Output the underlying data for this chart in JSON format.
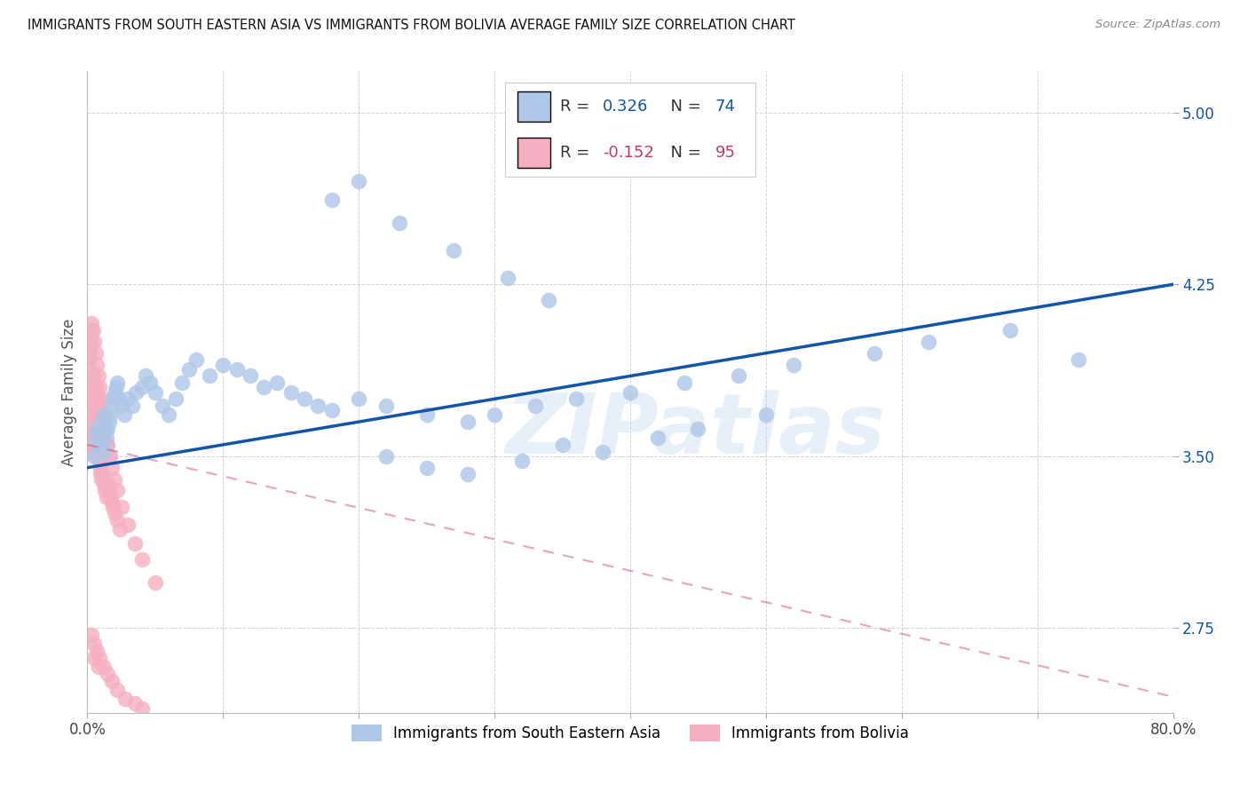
{
  "title": "IMMIGRANTS FROM SOUTH EASTERN ASIA VS IMMIGRANTS FROM BOLIVIA AVERAGE FAMILY SIZE CORRELATION CHART",
  "source": "Source: ZipAtlas.com",
  "ylabel": "Average Family Size",
  "yticks": [
    2.75,
    3.5,
    4.25,
    5.0
  ],
  "xlim": [
    0.0,
    0.8
  ],
  "ylim": [
    2.38,
    5.18
  ],
  "legend1_r": "0.326",
  "legend1_n": "74",
  "legend2_r": "-0.152",
  "legend2_n": "95",
  "color_blue": "#aec6e8",
  "color_pink": "#f5afc0",
  "trendline_blue": "#1155aa",
  "trendline_pink": "#cc3366",
  "watermark_text": "ZIPatlas",
  "legend_bottom_1": "Immigrants from South Eastern Asia",
  "legend_bottom_2": "Immigrants from Bolivia",
  "blue_x": [
    0.005,
    0.006,
    0.007,
    0.008,
    0.009,
    0.01,
    0.011,
    0.012,
    0.013,
    0.014,
    0.015,
    0.016,
    0.017,
    0.018,
    0.019,
    0.02,
    0.021,
    0.022,
    0.023,
    0.025,
    0.027,
    0.03,
    0.033,
    0.036,
    0.04,
    0.043,
    0.046,
    0.05,
    0.055,
    0.06,
    0.065,
    0.07,
    0.075,
    0.08,
    0.09,
    0.1,
    0.11,
    0.12,
    0.13,
    0.14,
    0.15,
    0.16,
    0.17,
    0.18,
    0.2,
    0.22,
    0.25,
    0.28,
    0.3,
    0.33,
    0.36,
    0.4,
    0.44,
    0.48,
    0.52,
    0.58,
    0.62,
    0.68,
    0.73,
    0.22,
    0.25,
    0.28,
    0.32,
    0.35,
    0.38,
    0.42,
    0.45,
    0.5,
    0.18,
    0.2,
    0.23,
    0.27,
    0.31,
    0.34
  ],
  "blue_y": [
    3.5,
    3.58,
    3.62,
    3.55,
    3.6,
    3.65,
    3.6,
    3.68,
    3.52,
    3.58,
    3.62,
    3.65,
    3.68,
    3.72,
    3.75,
    3.78,
    3.8,
    3.82,
    3.75,
    3.72,
    3.68,
    3.75,
    3.72,
    3.78,
    3.8,
    3.85,
    3.82,
    3.78,
    3.72,
    3.68,
    3.75,
    3.82,
    3.88,
    3.92,
    3.85,
    3.9,
    3.88,
    3.85,
    3.8,
    3.82,
    3.78,
    3.75,
    3.72,
    3.7,
    3.75,
    3.72,
    3.68,
    3.65,
    3.68,
    3.72,
    3.75,
    3.78,
    3.82,
    3.85,
    3.9,
    3.95,
    4.0,
    4.05,
    3.92,
    3.5,
    3.45,
    3.42,
    3.48,
    3.55,
    3.52,
    3.58,
    3.62,
    3.68,
    4.62,
    4.7,
    4.52,
    4.4,
    4.28,
    4.18
  ],
  "pink_x": [
    0.001,
    0.0013,
    0.0016,
    0.002,
    0.0023,
    0.0026,
    0.003,
    0.0033,
    0.0036,
    0.004,
    0.0043,
    0.0046,
    0.005,
    0.0053,
    0.0056,
    0.006,
    0.0063,
    0.0066,
    0.007,
    0.0073,
    0.0076,
    0.008,
    0.0083,
    0.0086,
    0.009,
    0.0093,
    0.0096,
    0.01,
    0.011,
    0.012,
    0.013,
    0.014,
    0.015,
    0.016,
    0.017,
    0.018,
    0.019,
    0.02,
    0.022,
    0.024,
    0.001,
    0.0013,
    0.0016,
    0.002,
    0.0023,
    0.0026,
    0.003,
    0.0033,
    0.004,
    0.005,
    0.006,
    0.007,
    0.008,
    0.009,
    0.01,
    0.011,
    0.012,
    0.013,
    0.015,
    0.017,
    0.001,
    0.0015,
    0.002,
    0.003,
    0.004,
    0.005,
    0.006,
    0.007,
    0.008,
    0.009,
    0.01,
    0.012,
    0.014,
    0.016,
    0.018,
    0.02,
    0.022,
    0.025,
    0.03,
    0.035,
    0.04,
    0.05,
    0.003,
    0.005,
    0.007,
    0.009,
    0.012,
    0.015,
    0.018,
    0.022,
    0.028,
    0.035,
    0.04,
    0.005,
    0.008
  ],
  "pink_y": [
    3.52,
    3.55,
    3.58,
    3.62,
    3.65,
    3.68,
    3.72,
    3.75,
    3.78,
    3.8,
    3.82,
    3.85,
    3.8,
    3.78,
    3.75,
    3.72,
    3.68,
    3.65,
    3.62,
    3.6,
    3.58,
    3.55,
    3.52,
    3.5,
    3.48,
    3.45,
    3.42,
    3.4,
    3.42,
    3.38,
    3.35,
    3.32,
    3.38,
    3.35,
    3.32,
    3.3,
    3.28,
    3.25,
    3.22,
    3.18,
    3.88,
    3.92,
    3.95,
    3.98,
    4.0,
    4.02,
    4.05,
    4.08,
    4.05,
    4.0,
    3.95,
    3.9,
    3.85,
    3.8,
    3.75,
    3.7,
    3.65,
    3.6,
    3.55,
    3.5,
    3.62,
    3.65,
    3.68,
    3.72,
    3.75,
    3.78,
    3.8,
    3.78,
    3.75,
    3.72,
    3.68,
    3.62,
    3.55,
    3.5,
    3.45,
    3.4,
    3.35,
    3.28,
    3.2,
    3.12,
    3.05,
    2.95,
    2.72,
    2.68,
    2.65,
    2.62,
    2.58,
    2.55,
    2.52,
    2.48,
    2.44,
    2.42,
    2.4,
    2.62,
    2.58
  ]
}
